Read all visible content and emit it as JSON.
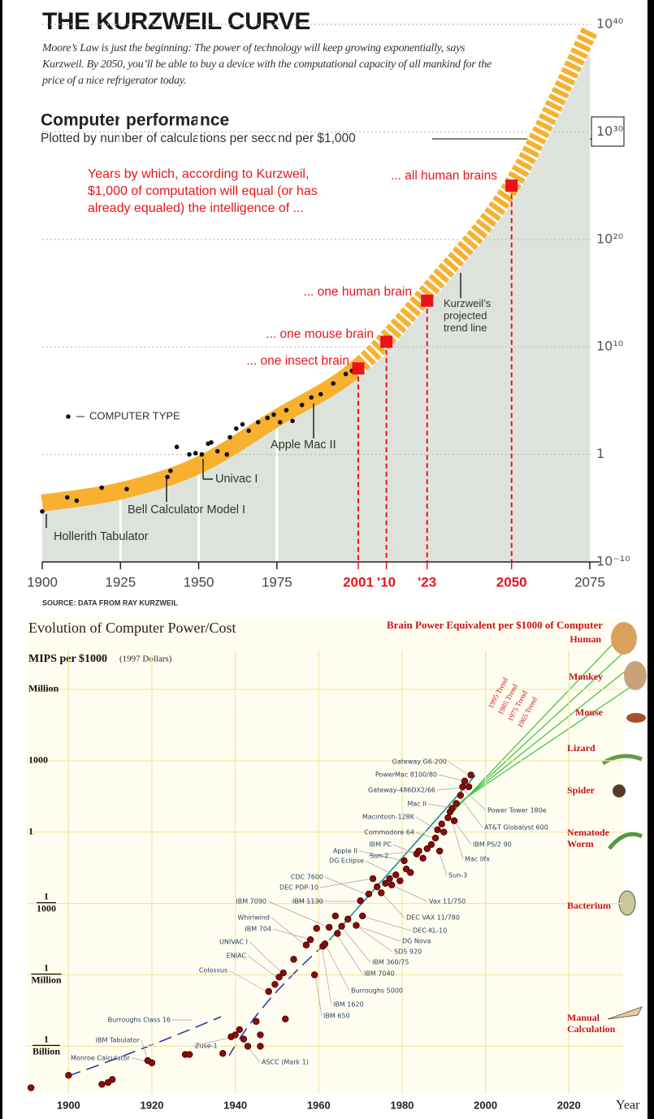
{
  "chart_data": [
    {
      "type": "scatter",
      "title": "THE KURZWEIL CURVE",
      "subtitle": "Moore’s Law is just the beginning: The power of technology will keep growing exponentially, says Kurzweil. By 2050, you’ll be able to buy a device with the computational capacity of all mankind for the price of a nice refrigerator today.",
      "heading": "Computer performance",
      "heading_note": "Plotted by number of calculations per second per $1,000",
      "milestone_caption": "Years by which, according to Kurzweil, $1,000 of computation will equal (or has already equaled) the intelligence of ...",
      "source": "SOURCE: DATA FROM RAY KURZWEIL",
      "annotations": [
        "Hollerith Tabulator",
        "Bell Calculator Model I",
        "Univac I",
        "Apple Mac II"
      ],
      "log_scale": true,
      "grid": true,
      "xlim": [
        1900,
        2075
      ],
      "xticks": [
        1900,
        1925,
        1950,
        1975,
        2001,
        {
          "value": 2010,
          "label": "'10"
        },
        {
          "value": 2023,
          "label": "'23"
        },
        2050,
        2075
      ],
      "ylim": [
        1e-10,
        1e+40
      ],
      "yticks": [
        {
          "value": 1e-10,
          "label": "10⁻¹⁰"
        },
        1,
        {
          "value": 10000000000.0,
          "label": "10¹⁰"
        },
        {
          "value": 1e+20,
          "label": "10²⁰"
        },
        {
          "value": 1e+30,
          "label": "10³⁰"
        },
        {
          "value": 1e+40,
          "label": "10⁴⁰"
        }
      ],
      "series": [
        {
          "type": "scatter",
          "name": "COMPUTER TYPE",
          "color": "#111111",
          "x": [
            1900,
            1908,
            1911,
            1919,
            1927,
            1940,
            1941,
            1943,
            1947,
            1949,
            1951,
            1953,
            1954,
            1956,
            1959,
            1960,
            1962,
            1964,
            1966,
            1969,
            1972,
            1974,
            1976,
            1978,
            1980,
            1983,
            1986,
            1989,
            1993,
            1997,
            1999
          ],
          "values": [
            5e-06,
            0.0001,
            5e-05,
            0.0008,
            0.0006,
            0.008,
            0.03,
            5,
            1,
            1.3,
            1,
            10,
            13,
            2,
            1,
            40,
            250,
            630,
            160,
            1000,
            2500,
            5000,
            1000,
            13000,
            1300,
            40000,
            200000,
            400000,
            4000000,
            30000000,
            60000000
          ]
        },
        {
          "type": "area",
          "name": "Kurzweil’s projected trend line",
          "color": "#f7b12f",
          "area_color": "#dde3dc",
          "x": [
            1900,
            1925,
            1950,
            1975,
            2000,
            2025,
            2050,
            2075
          ],
          "values": [
            3e-05,
            0.0004,
            0.1,
            2500,
            80000000.0,
            6000000000000000.0,
            1e+25,
            2.5e+39
          ]
        },
        {
          "type": "marker",
          "color": "#e8141b",
          "x": [
            2001,
            2010,
            2023,
            2050
          ],
          "values": [
            100000000.0,
            30000000000.0,
            200000000000000.0,
            1e+25
          ],
          "labels": [
            "... one insect brain",
            "... one mouse brain",
            "... one human brain",
            "... all human brains"
          ]
        }
      ]
    },
    {
      "type": "scatter",
      "title": "Evolution of Computer Power/Cost",
      "y_label": "MIPS per $1000",
      "y_label_note": "(1997 Dollars)",
      "x_label": "Year",
      "right_title": "Brain Power Equivalent per $1000 of Computer",
      "brain_equivalents": [
        "Human",
        "Monkey",
        "Mouse",
        "Lizard",
        "Spider",
        "Nematode Worm",
        "Bacterium",
        "Manual Calculation"
      ],
      "trend_labels": [
        "1995 Trend",
        "1985 Trend",
        "1975 Trend",
        "1965 Trend"
      ],
      "annotations": [
        "Gateway G6-200",
        "PowerMac 8100/80",
        "Gateway-486DX2/66",
        "Mac II",
        "Macintosh-128K",
        "Commodore 64",
        "IBM PC",
        "Apple II",
        "Sun-2",
        "DG Eclipse",
        "CDC 7600",
        "DEC PDP-10",
        "IBM 7090",
        "IBM 1130",
        "Whirlwind",
        "IBM 704",
        "UNIVAC I",
        "ENIAC",
        "Colossus",
        "Burroughs Class 16",
        "IBM Tabulator",
        "Monroe Calculator",
        "Zuse-1",
        "ASCC (Mark 1)",
        "IBM 650",
        "IBM 1620",
        "Burroughs 5000",
        "IBM 7040",
        "IBM 360/75",
        "SDS 920",
        "DG Nova",
        "DEC-KL-10",
        "DEC VAX 11/780",
        "Vax 11/750",
        "Sun-3",
        "Mac IIfx",
        "IBM PS/2 90",
        "AT&T Globalyst 600",
        "Power Tower 180e"
      ],
      "log_scale": true,
      "grid": true,
      "xlim": [
        1890,
        2033
      ],
      "xticks": [
        1900,
        1920,
        1940,
        1960,
        1980,
        2000,
        2020
      ],
      "ylim": [
        1e-11,
        1000000000.0
      ],
      "yticks": [
        {
          "value": 1000000,
          "label": "Million"
        },
        1000,
        1,
        {
          "value": 0.001,
          "label": "1/1000"
        },
        {
          "value": 1e-06,
          "label": "1/Million"
        },
        {
          "value": 1e-09,
          "label": "1/Billion"
        }
      ],
      "color": "#8b0a0a",
      "x": [
        1891,
        1900,
        1908,
        1909.5,
        1910.5,
        1919,
        1920,
        1928,
        1929,
        1937,
        1939,
        1940,
        1942,
        1941,
        1943,
        1946,
        1946,
        1952,
        1945,
        1948,
        1949.5,
        1950.5,
        1951.5,
        1954,
        1957,
        1958,
        1959,
        1959.5,
        1961,
        1961.5,
        1962.5,
        1964,
        1964.5,
        1965.5,
        1967,
        1969,
        1970.5,
        1970,
        1972,
        1973,
        1974,
        1975,
        1976,
        1977,
        1977.5,
        1978.5,
        1979.5,
        1980.5,
        1981,
        1982,
        1983.5,
        1984,
        1985,
        1986,
        1987,
        1988,
        1988.5,
        1989,
        1989.5,
        1990,
        1991,
        1991.5,
        1992,
        1992.5,
        1993,
        1994,
        1994.5,
        1995,
        1996,
        1996.5
      ],
      "values": [
        1.8e-11,
        6e-11,
        2.5e-11,
        3e-11,
        4e-11,
        2.5e-10,
        2e-10,
        4.5e-10,
        4.5e-10,
        5e-10,
        2.5e-09,
        3e-09,
        2e-09,
        5e-09,
        1e-09,
        1e-09,
        3e-09,
        1.4e-08,
        1.1e-08,
        2e-07,
        4e-07,
        8e-07,
        1.2e-06,
        4.5e-06,
        1.8e-05,
        3e-05,
        1e-06,
        9e-05,
        1.6e-05,
        2e-05,
        0.0001,
        0.0003,
        5.5e-05,
        0.00011,
        0.00022,
        0.00012,
        0.0003,
        0.0013,
        0.0025,
        0.011,
        0.005,
        0.0028,
        0.007,
        0.011,
        0.006,
        0.016,
        0.009,
        0.063,
        0.028,
        0.02,
        0.12,
        0.16,
        0.08,
        0.2,
        0.3,
        0.56,
        1.25,
        0.16,
        2.2,
        1,
        4,
        7,
        10,
        3,
        16,
        35,
        80,
        140,
        80,
        250
      ]
    }
  ]
}
